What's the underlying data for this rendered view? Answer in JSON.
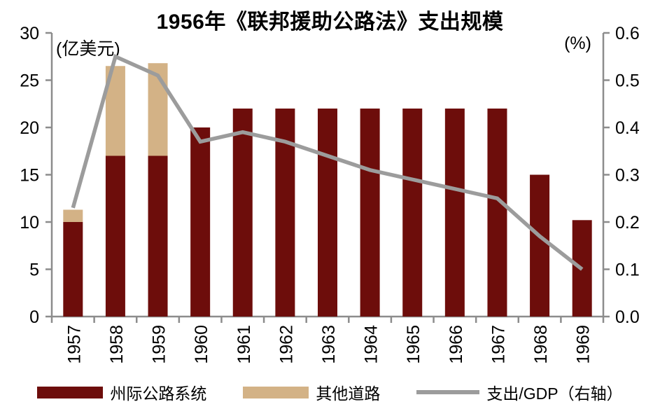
{
  "colors": {
    "interstate": "#6d0d0b",
    "other": "#d3b286",
    "line": "#9c9c9c",
    "axis": "#8c8c8c",
    "text": "#000000",
    "background": "#ffffff"
  },
  "chart_data": {
    "type": "combo-stacked-bar-line",
    "title": "1956年《联邦援助公路法》支出规模",
    "categories": [
      "1957",
      "1958",
      "1959",
      "1960",
      "1961",
      "1962",
      "1963",
      "1964",
      "1965",
      "1966",
      "1967",
      "1968",
      "1969"
    ],
    "series": [
      {
        "name": "州际公路系统",
        "type": "bar",
        "stack": "spending",
        "axis": "left",
        "color_key": "interstate",
        "values": [
          10,
          17,
          17,
          20,
          22,
          22,
          22,
          22,
          22,
          22,
          22,
          15,
          10.2
        ]
      },
      {
        "name": "其他道路",
        "type": "bar",
        "stack": "spending",
        "axis": "left",
        "color_key": "other",
        "values": [
          1.3,
          9.5,
          9.8,
          0,
          0,
          0,
          0,
          0,
          0,
          0,
          0,
          0,
          0
        ]
      },
      {
        "name": "支出/GDP（右轴）",
        "type": "line",
        "axis": "right",
        "color_key": "line",
        "values": [
          0.23,
          0.55,
          0.51,
          0.37,
          0.39,
          0.37,
          0.34,
          0.31,
          0.29,
          0.27,
          0.25,
          0.17,
          0.1
        ]
      }
    ],
    "left_axis": {
      "unit": "(亿美元)",
      "min": 0,
      "max": 30,
      "ticks": [
        0,
        5,
        10,
        15,
        20,
        25,
        30
      ]
    },
    "right_axis": {
      "unit": "(%)",
      "min": 0,
      "max": 0.6,
      "ticks": [
        "0.0",
        "0.1",
        "0.2",
        "0.3",
        "0.4",
        "0.5",
        "0.6"
      ]
    },
    "legend_position": "bottom",
    "grid": false,
    "x_label_rotation": -90
  }
}
